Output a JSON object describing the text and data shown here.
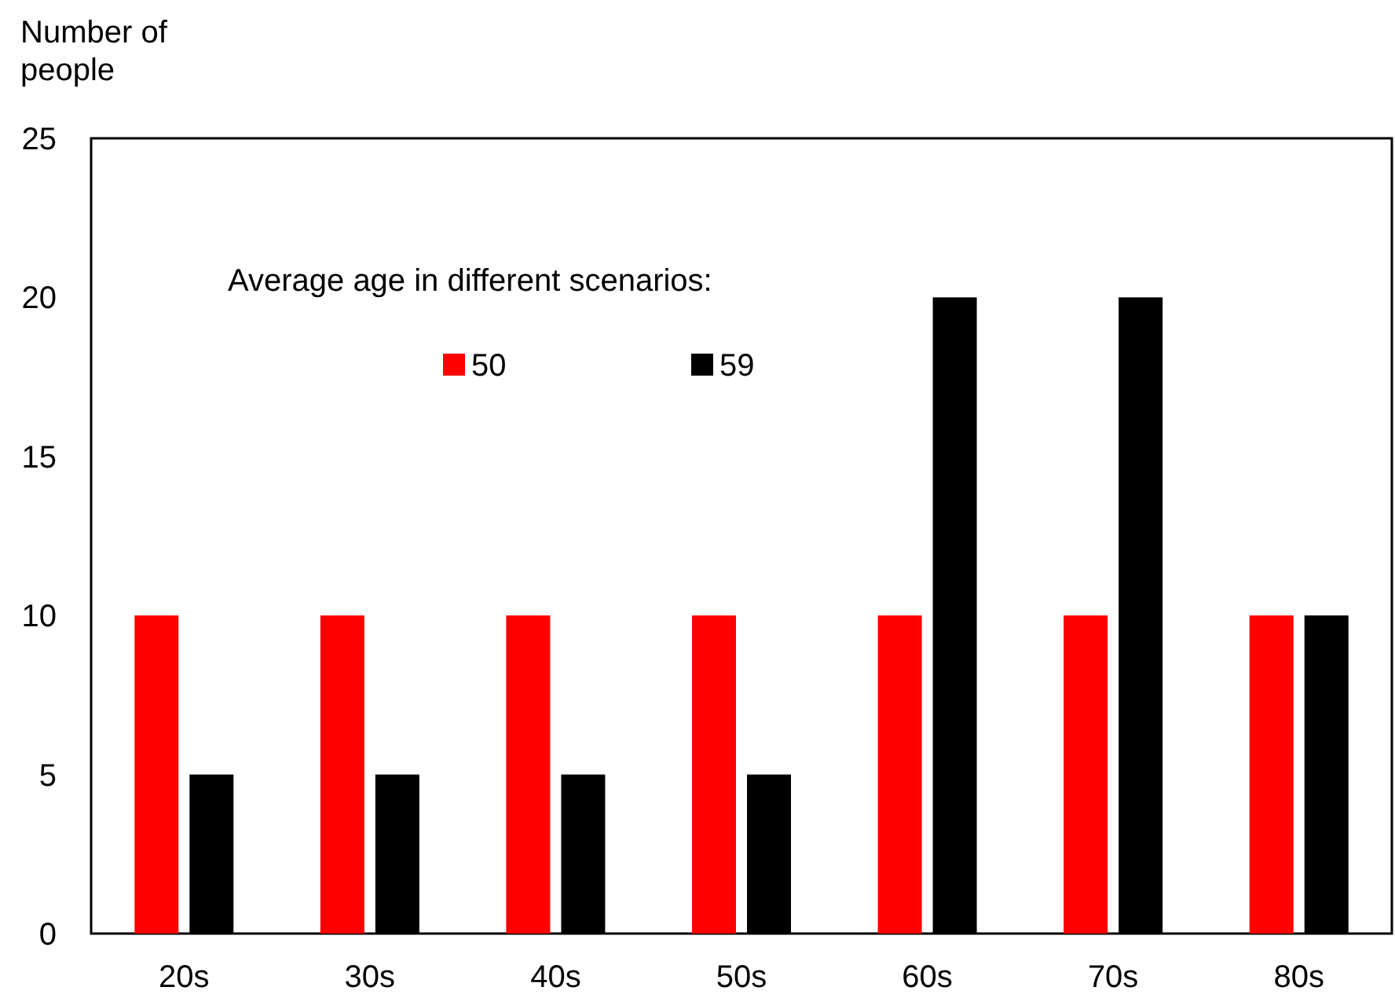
{
  "chart_data": {
    "type": "bar",
    "ylabel": "Number of\npeople",
    "legend_title": "Average age in different scenarios:",
    "categories": [
      "20s",
      "30s",
      "40s",
      "50s",
      "60s",
      "70s",
      "80s"
    ],
    "series": [
      {
        "name": "50",
        "color": "#ff0000",
        "values": [
          10,
          10,
          10,
          10,
          10,
          10,
          10
        ]
      },
      {
        "name": "59",
        "color": "#000000",
        "values": [
          5,
          5,
          5,
          5,
          20,
          20,
          10
        ]
      }
    ],
    "ylim": [
      0,
      25
    ],
    "yticks": [
      0,
      5,
      10,
      15,
      20,
      25
    ],
    "grid": false,
    "legend": "top"
  }
}
